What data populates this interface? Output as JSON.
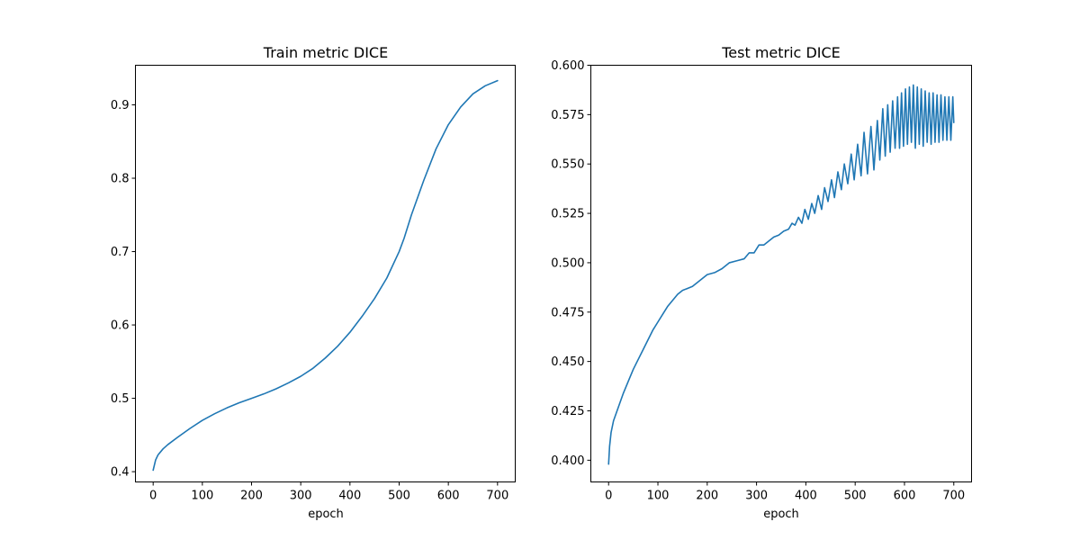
{
  "chart_data": [
    {
      "type": "line",
      "title": "Train metric DICE",
      "xlabel": "epoch",
      "ylabel": "",
      "xlim": [
        -36,
        736
      ],
      "ylim": [
        0.386,
        0.954
      ],
      "xticks": [
        0,
        100,
        200,
        300,
        400,
        500,
        600,
        700
      ],
      "yticks": [
        0.4,
        0.5,
        0.6,
        0.7,
        0.8,
        0.9
      ],
      "ytick_labels": [
        "0.4",
        "0.5",
        "0.6",
        "0.7",
        "0.8",
        "0.9"
      ],
      "grid": false,
      "color": "#1f77b4",
      "series": [
        {
          "x": [
            0,
            5,
            10,
            20,
            30,
            50,
            75,
            100,
            125,
            150,
            175,
            200,
            225,
            250,
            275,
            300,
            325,
            350,
            375,
            400,
            425,
            450,
            475,
            500,
            510,
            525,
            550,
            575,
            600,
            625,
            650,
            675,
            700
          ],
          "y": [
            0.402,
            0.416,
            0.423,
            0.431,
            0.437,
            0.447,
            0.459,
            0.47,
            0.479,
            0.487,
            0.494,
            0.5,
            0.506,
            0.513,
            0.521,
            0.53,
            0.541,
            0.555,
            0.571,
            0.59,
            0.612,
            0.636,
            0.664,
            0.7,
            0.718,
            0.75,
            0.797,
            0.84,
            0.873,
            0.897,
            0.915,
            0.926,
            0.933
          ]
        }
      ]
    },
    {
      "type": "line",
      "title": "Test metric DICE",
      "xlabel": "epoch",
      "ylabel": "",
      "xlim": [
        -36,
        736
      ],
      "ylim": [
        0.389,
        0.6
      ],
      "xticks": [
        0,
        100,
        200,
        300,
        400,
        500,
        600,
        700
      ],
      "yticks": [
        0.4,
        0.425,
        0.45,
        0.475,
        0.5,
        0.525,
        0.55,
        0.575,
        0.6
      ],
      "ytick_labels": [
        "0.400",
        "0.425",
        "0.450",
        "0.475",
        "0.500",
        "0.525",
        "0.550",
        "0.575",
        "0.600"
      ],
      "grid": false,
      "color": "#1f77b4",
      "series": [
        {
          "x": [
            0,
            2,
            5,
            10,
            20,
            30,
            40,
            50,
            60,
            70,
            80,
            90,
            100,
            110,
            120,
            130,
            140,
            150,
            160,
            170,
            180,
            190,
            200,
            215,
            230,
            245,
            260,
            275,
            285,
            295,
            305,
            315,
            325,
            335,
            345,
            355,
            365,
            372,
            378,
            385,
            392,
            398,
            405,
            412,
            418,
            425,
            432,
            438,
            445,
            452,
            458,
            465,
            472,
            478,
            485,
            492,
            498,
            505,
            512,
            518,
            525,
            532,
            538,
            545,
            550,
            556,
            561,
            566,
            571,
            576,
            581,
            586,
            590,
            594,
            598,
            602,
            606,
            610,
            614,
            618,
            622,
            626,
            630,
            634,
            638,
            642,
            646,
            650,
            654,
            658,
            662,
            666,
            670,
            674,
            678,
            682,
            686,
            690,
            694,
            698,
            700
          ],
          "y": [
            0.398,
            0.407,
            0.414,
            0.42,
            0.427,
            0.434,
            0.44,
            0.446,
            0.451,
            0.456,
            0.461,
            0.466,
            0.47,
            0.474,
            0.478,
            0.481,
            0.484,
            0.486,
            0.487,
            0.488,
            0.49,
            0.492,
            0.494,
            0.495,
            0.497,
            0.5,
            0.501,
            0.502,
            0.505,
            0.505,
            0.509,
            0.509,
            0.511,
            0.513,
            0.514,
            0.516,
            0.517,
            0.52,
            0.519,
            0.523,
            0.52,
            0.527,
            0.522,
            0.53,
            0.525,
            0.534,
            0.527,
            0.538,
            0.531,
            0.542,
            0.533,
            0.546,
            0.537,
            0.55,
            0.54,
            0.555,
            0.542,
            0.56,
            0.544,
            0.566,
            0.545,
            0.569,
            0.547,
            0.572,
            0.552,
            0.578,
            0.554,
            0.58,
            0.556,
            0.582,
            0.558,
            0.584,
            0.558,
            0.586,
            0.559,
            0.588,
            0.56,
            0.589,
            0.561,
            0.59,
            0.558,
            0.589,
            0.56,
            0.588,
            0.559,
            0.587,
            0.561,
            0.586,
            0.56,
            0.586,
            0.561,
            0.585,
            0.561,
            0.585,
            0.562,
            0.584,
            0.562,
            0.584,
            0.562,
            0.584,
            0.571
          ]
        }
      ]
    }
  ]
}
